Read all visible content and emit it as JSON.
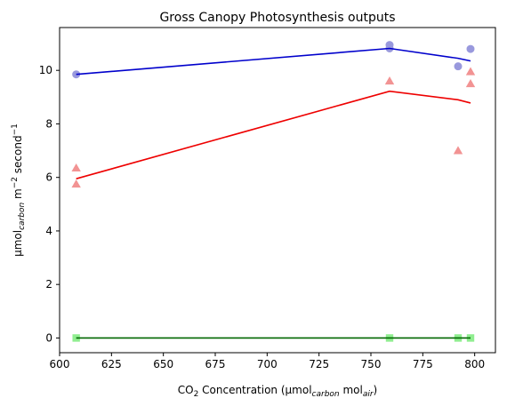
{
  "chart_data": {
    "type": "scatter",
    "title": "Gross Canopy Photosynthesis outputs",
    "xlabel": {
      "prefix": "CO",
      "sub1": "2",
      "middle": " Concentration (µmol",
      "sub2": "carbon",
      "space": " mol",
      "sub3": "air",
      "suffix": ")"
    },
    "ylabel": {
      "prefix": "µmol",
      "sub1": "carbon",
      "middle": " m",
      "sup1": "−2",
      "space": " second",
      "sup2": "−1"
    },
    "xlim": [
      600,
      810
    ],
    "ylim": [
      -0.55,
      11.6
    ],
    "xticks": [
      600,
      625,
      650,
      675,
      700,
      725,
      750,
      775,
      800
    ],
    "yticks": [
      0,
      2,
      4,
      6,
      8,
      10
    ],
    "grid": false,
    "series": [
      {
        "marker": "circle",
        "color": "#9999dd",
        "line_color": "#0000cc",
        "points": [
          [
            608,
            9.85
          ],
          [
            759,
            10.95
          ],
          [
            759,
            10.82
          ],
          [
            792,
            10.15
          ],
          [
            798,
            10.8
          ]
        ],
        "fit": [
          [
            608,
            9.85
          ],
          [
            759,
            10.82
          ],
          [
            792,
            10.45
          ],
          [
            798,
            10.35
          ]
        ]
      },
      {
        "marker": "triangle",
        "color": "#f29393",
        "line_color": "#ee0000",
        "points": [
          [
            608,
            6.35
          ],
          [
            608,
            5.75
          ],
          [
            759,
            9.6
          ],
          [
            792,
            7.0
          ],
          [
            798,
            9.95
          ],
          [
            798,
            9.5
          ]
        ],
        "fit": [
          [
            608,
            5.95
          ],
          [
            759,
            9.22
          ],
          [
            792,
            8.9
          ],
          [
            798,
            8.78
          ]
        ]
      },
      {
        "marker": "square",
        "color": "#90ee90",
        "line_color": "#006600",
        "points": [
          [
            608,
            0
          ],
          [
            759,
            0
          ],
          [
            792,
            0
          ],
          [
            798,
            0
          ]
        ],
        "fit": [
          [
            608,
            0
          ],
          [
            759,
            0
          ],
          [
            792,
            0
          ],
          [
            798,
            0
          ]
        ]
      }
    ]
  }
}
